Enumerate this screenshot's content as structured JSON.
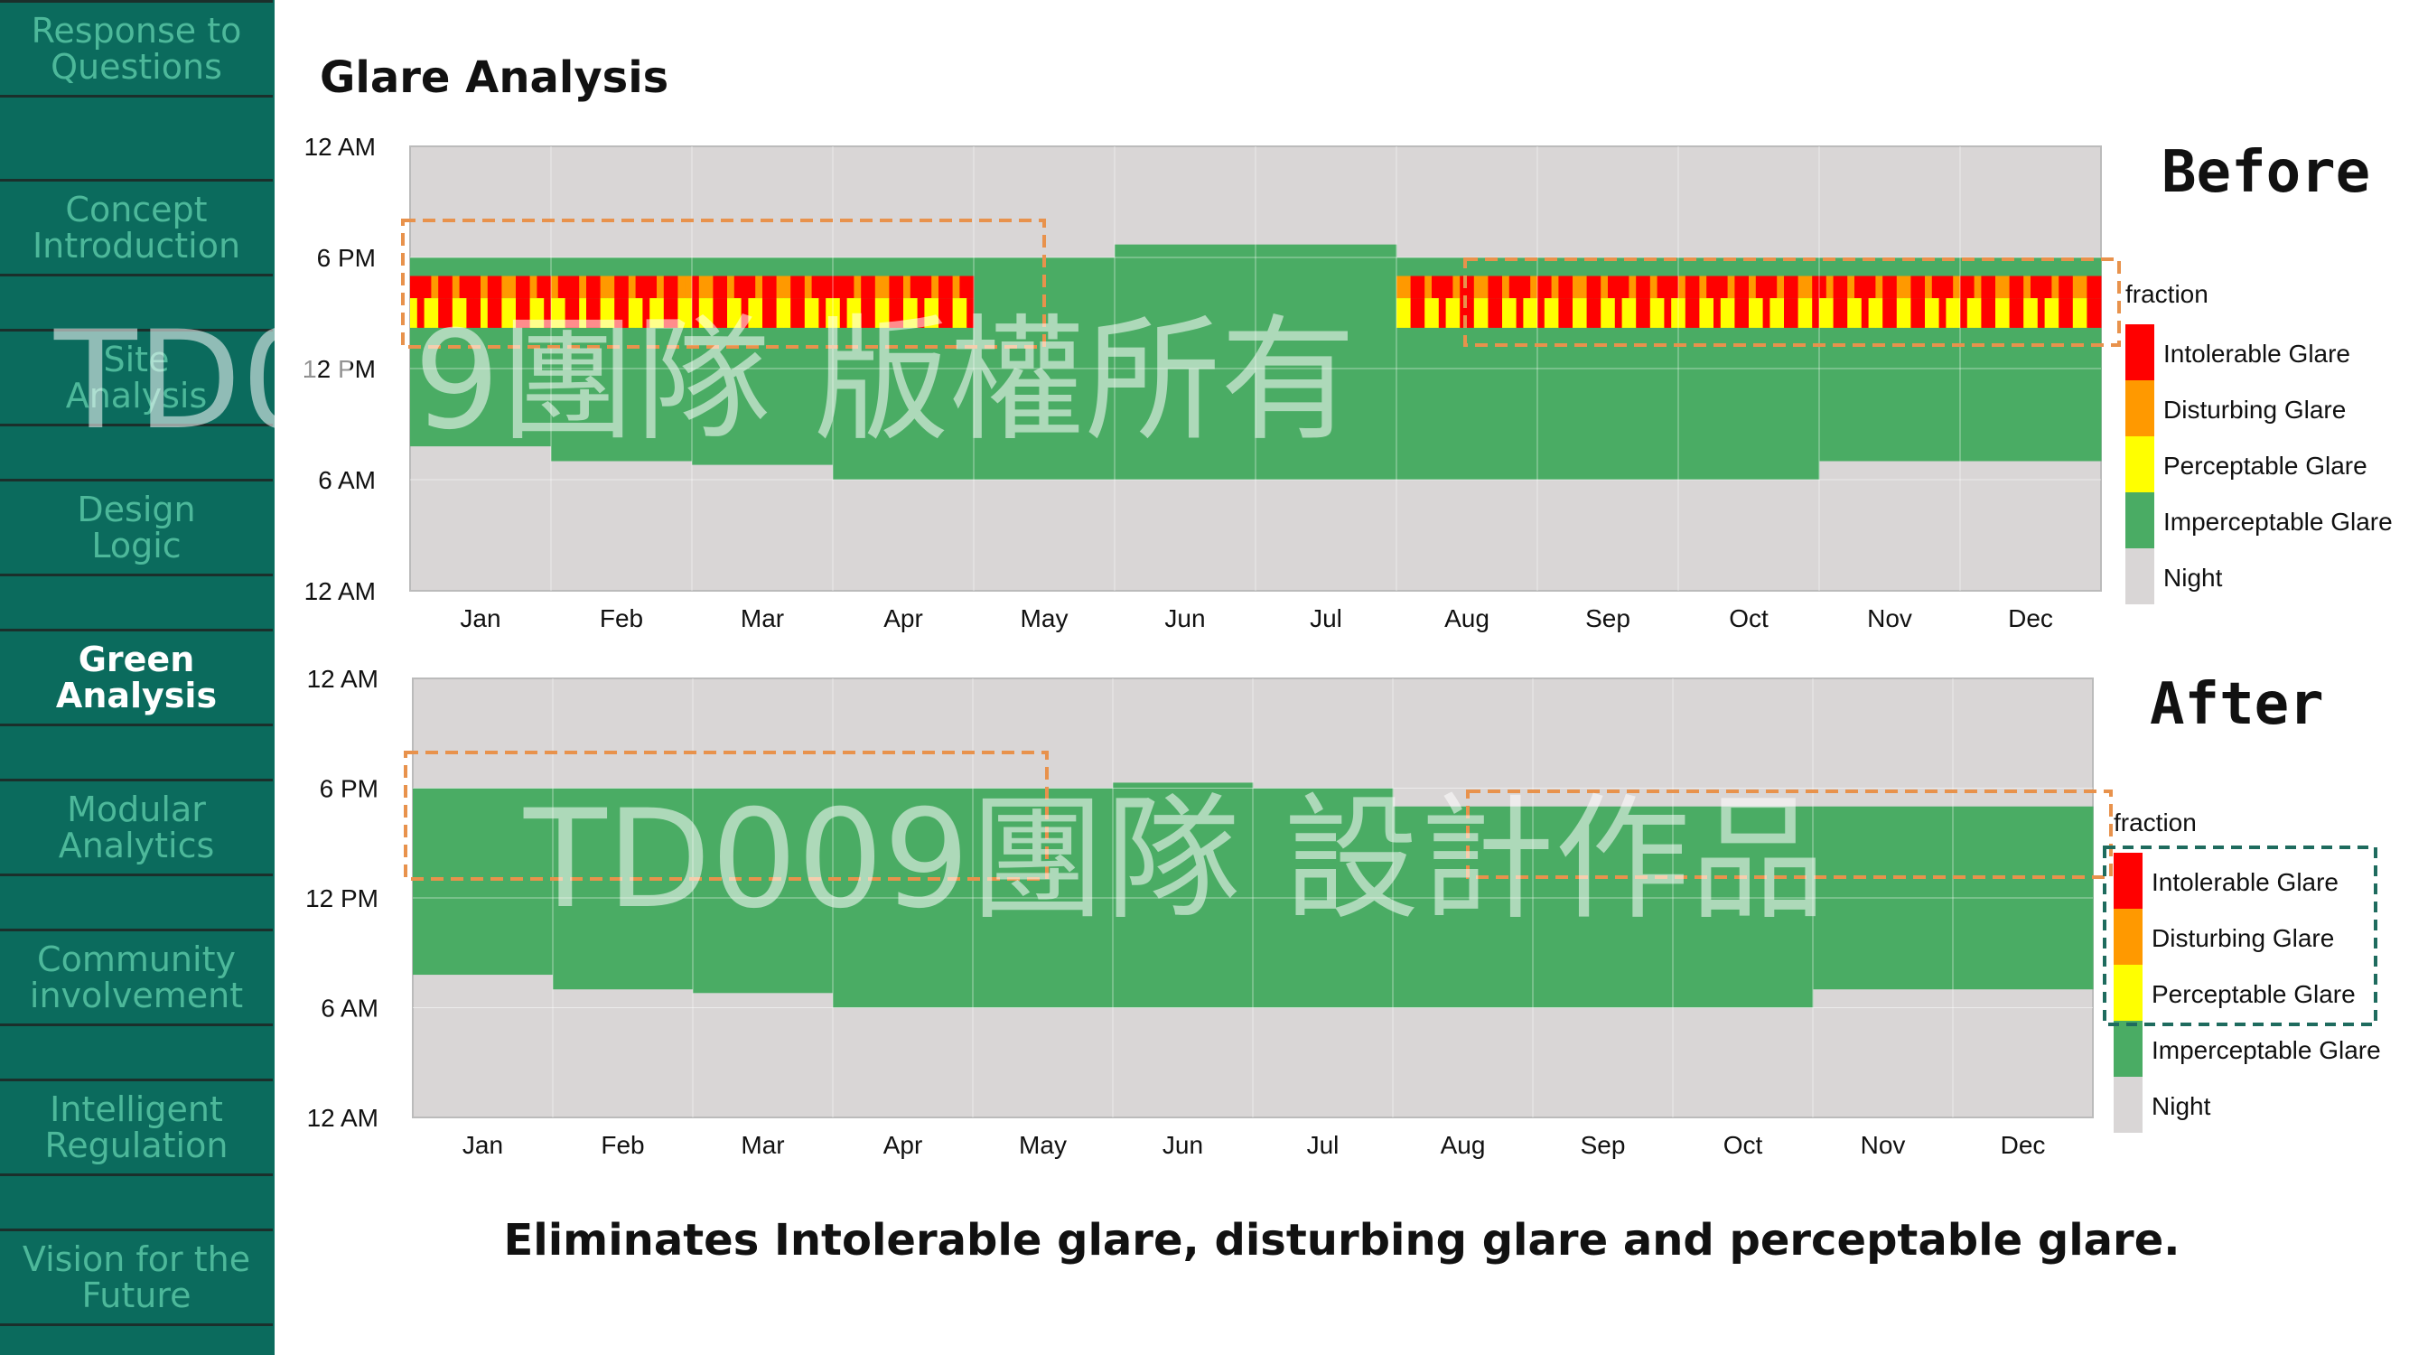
{
  "sidebar": {
    "items": [
      {
        "label": "Response to\nQuestions",
        "active": false
      },
      {
        "label": "Concept\nIntroduction",
        "active": false
      },
      {
        "label": "Site\nAnalysis",
        "active": false
      },
      {
        "label": "Design\nLogic",
        "active": false
      },
      {
        "label": "Green\nAnalysis",
        "active": true
      },
      {
        "label": "Modular\nAnalytics",
        "active": false
      },
      {
        "label": "Community\ninvolvement",
        "active": false
      },
      {
        "label": "Intelligent\nRegulation",
        "active": false
      },
      {
        "label": "Vision for the\nFuture",
        "active": false
      }
    ]
  },
  "page_title": "Glare Analysis",
  "watermarks": [
    "TD009團隊 版權所有",
    "TD009團隊 設計作品"
  ],
  "conclusion": "Eliminates Intolerable glare, disturbing glare and perceptable glare.",
  "legend": {
    "title": "fraction",
    "items": [
      {
        "label": "Intolerable Glare",
        "color": "#ff0000"
      },
      {
        "label": "Disturbing Glare",
        "color": "#ff9900"
      },
      {
        "label": "Perceptable Glare",
        "color": "#ffff00"
      },
      {
        "label": "Imperceptable Glare",
        "color": "#4aac64"
      },
      {
        "label": "Night",
        "color": "#d9d6d6"
      }
    ]
  },
  "chart_data": [
    {
      "type": "heatmap",
      "title": "Before",
      "x_categories": [
        "Jan",
        "Feb",
        "Mar",
        "Apr",
        "May",
        "Jun",
        "Jul",
        "Aug",
        "Sep",
        "Oct",
        "Nov",
        "Dec"
      ],
      "y_ticks": [
        "12 AM",
        "6 PM",
        "12 PM",
        "6 AM",
        "12 AM"
      ],
      "daylight_hours": {
        "sunrise_by_month": [
          7.4,
          7.0,
          6.6,
          6.0,
          6.0,
          6.0,
          6.0,
          6.0,
          6.0,
          6.0,
          6.5,
          7.0
        ],
        "sunset_by_month": [
          18.0,
          18.0,
          18.0,
          18.0,
          18.6,
          18.8,
          18.8,
          18.0,
          18.0,
          18.0,
          18.0,
          18.0
        ]
      },
      "glare_periods": [
        {
          "months": [
            "Jan",
            "Feb",
            "Mar",
            "Apr"
          ],
          "from_hour": 14,
          "to_hour": 17,
          "severity": "Intolerable Glare"
        },
        {
          "months": [
            "Aug",
            "Sep",
            "Oct",
            "Nov",
            "Dec"
          ],
          "from_hour": 14,
          "to_hour": 17,
          "severity": "Intolerable Glare"
        }
      ]
    },
    {
      "type": "heatmap",
      "title": "After",
      "x_categories": [
        "Jan",
        "Feb",
        "Mar",
        "Apr",
        "May",
        "Jun",
        "Jul",
        "Aug",
        "Sep",
        "Oct",
        "Nov",
        "Dec"
      ],
      "y_ticks": [
        "12 AM",
        "6 PM",
        "12 PM",
        "6 AM",
        "12 AM"
      ],
      "glare_periods": []
    }
  ]
}
